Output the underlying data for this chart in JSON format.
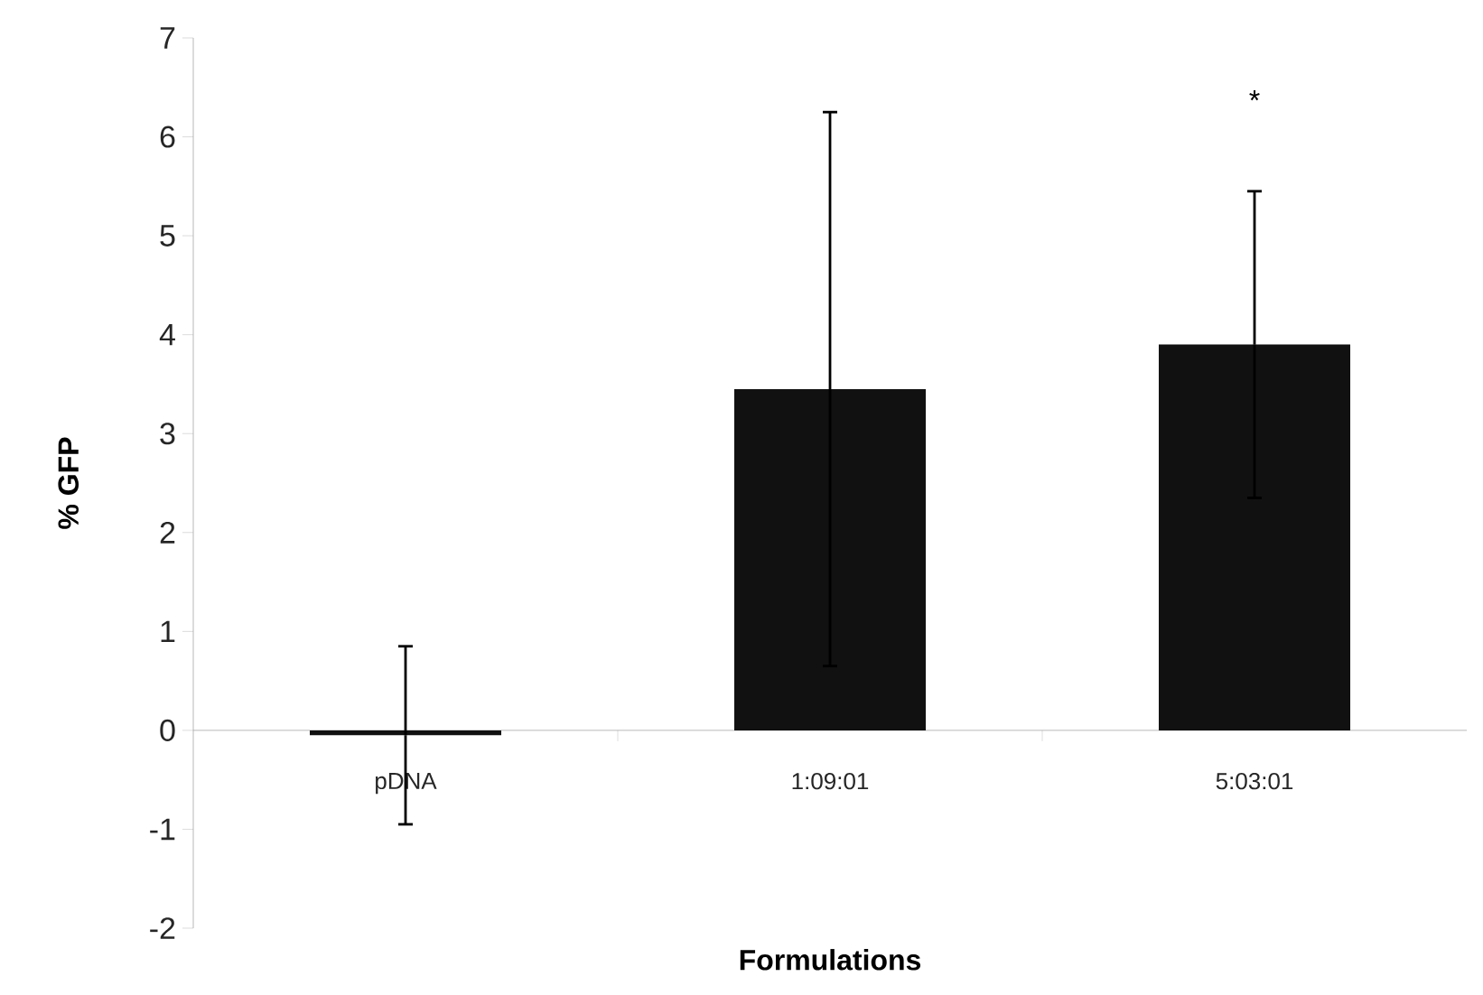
{
  "chart_data": {
    "type": "bar",
    "xlabel": "Formulations",
    "ylabel": "% GFP",
    "categories": [
      "pDNA",
      "1:09:01",
      "5:03:01"
    ],
    "values": [
      -0.05,
      3.45,
      3.9
    ],
    "errors": [
      0.9,
      2.8,
      1.55
    ],
    "color": "#111111",
    "ylim": [
      -2,
      7
    ],
    "yticks": [
      -2,
      -1,
      0,
      1,
      2,
      3,
      4,
      5,
      6,
      7
    ],
    "annotations": [
      "*"
    ]
  }
}
